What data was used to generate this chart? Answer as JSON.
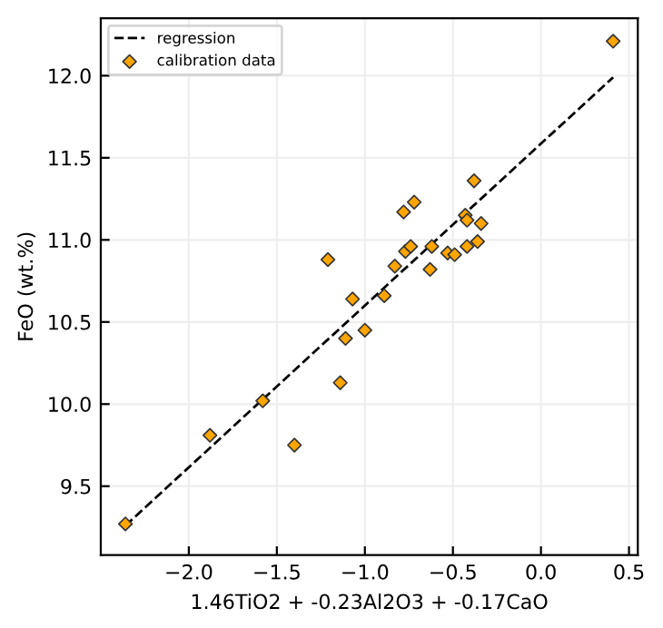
{
  "chart_data": {
    "type": "scatter",
    "xlabel": "1.46TiO2 + -0.23Al2O3 + -0.17CaO",
    "ylabel": "FeO (wt.%)",
    "xlim": [
      -2.5,
      0.55
    ],
    "ylim": [
      9.08,
      12.35
    ],
    "xticks": [
      {
        "value": -2.0,
        "label": "−2.0"
      },
      {
        "value": -1.5,
        "label": "−1.5"
      },
      {
        "value": -1.0,
        "label": "−1.0"
      },
      {
        "value": -0.5,
        "label": "−0.5"
      },
      {
        "value": 0.0,
        "label": "0.0"
      },
      {
        "value": 0.5,
        "label": "0.5"
      }
    ],
    "yticks": [
      {
        "value": 9.5,
        "label": "9.5"
      },
      {
        "value": 10.0,
        "label": "10.0"
      },
      {
        "value": 10.5,
        "label": "10.5"
      },
      {
        "value": 11.0,
        "label": "11.0"
      },
      {
        "value": 11.5,
        "label": "11.5"
      },
      {
        "value": 12.0,
        "label": "12.0"
      }
    ],
    "grid": true,
    "legend": "top left",
    "series": [
      {
        "name": "regression",
        "type": "line",
        "color": "#000000",
        "line_style": "dashed",
        "marker": "none",
        "x": [
          -2.36,
          0.41
        ],
        "values": [
          9.26,
          11.99
        ]
      },
      {
        "name": "calibration data",
        "color": "#ffa500",
        "marker": "diamond",
        "x": [
          -2.36,
          -1.88,
          -1.58,
          -1.4,
          -1.21,
          -1.14,
          -1.11,
          -1.07,
          -1.0,
          -0.89,
          -0.83,
          -0.78,
          -0.77,
          -0.74,
          -0.72,
          -0.63,
          -0.62,
          -0.53,
          -0.49,
          -0.42,
          -0.43,
          -0.42,
          -0.38,
          -0.34,
          -0.36,
          0.41
        ],
        "values": [
          9.27,
          9.81,
          10.02,
          9.75,
          10.88,
          10.13,
          10.4,
          10.64,
          10.45,
          10.66,
          10.84,
          11.17,
          10.93,
          10.96,
          11.23,
          10.82,
          10.96,
          10.92,
          10.91,
          10.96,
          11.15,
          11.12,
          11.36,
          11.1,
          10.99,
          12.21
        ]
      }
    ]
  }
}
